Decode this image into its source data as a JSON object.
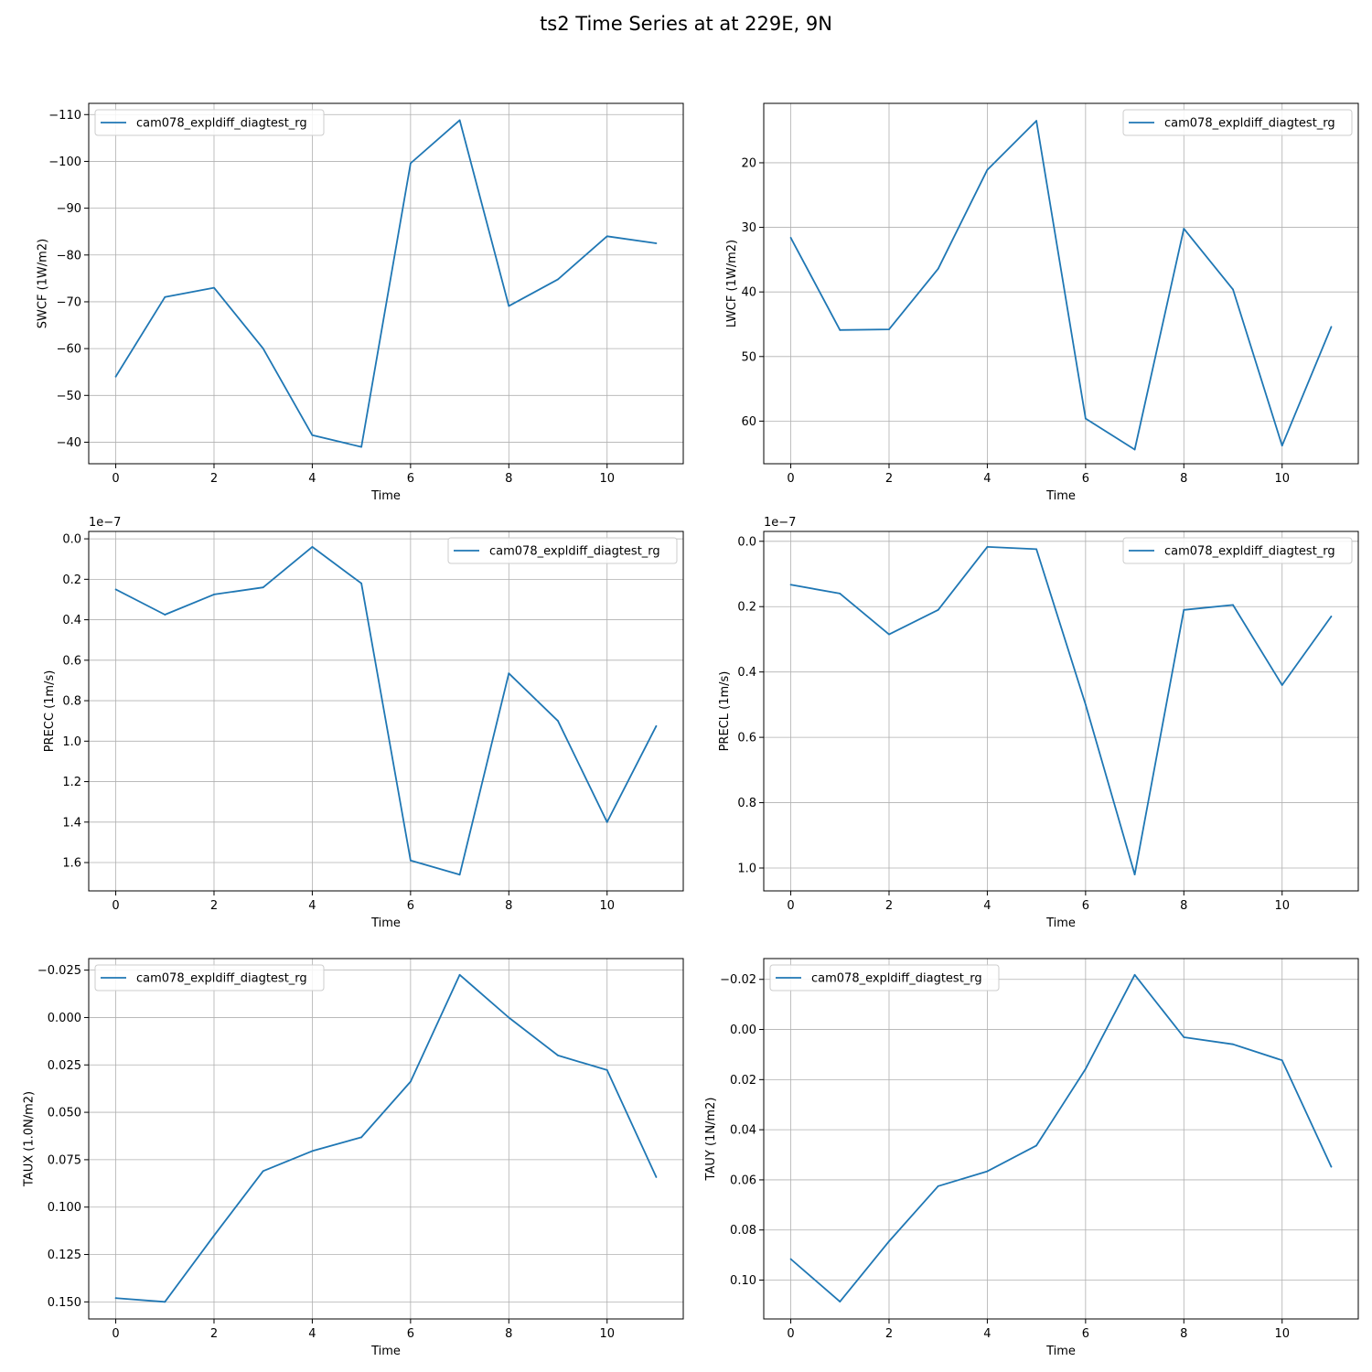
{
  "figure": {
    "title": "ts2 Time Series at at 229E, 9N"
  },
  "colors": {
    "series": "#1f77b4",
    "grid": "#b0b0b0",
    "axes": "#000000",
    "legend_border": "#cccccc"
  },
  "chart_data": [
    {
      "type": "line",
      "xlabel": "Time",
      "ylabel": "SWCF (1W/m2)",
      "offset_label": "",
      "xlim": [
        -0.55,
        11.55
      ],
      "ylim": [
        -35.4,
        -112.4
      ],
      "xticks": [
        0,
        2,
        4,
        6,
        8,
        10
      ],
      "yticks": [
        -40,
        -50,
        -60,
        -70,
        -80,
        -90,
        -100,
        -110
      ],
      "ytick_labels": [
        "−40",
        "−50",
        "−60",
        "−70",
        "−80",
        "−90",
        "−100",
        "−110"
      ],
      "grid": true,
      "legend_position": "upper-left",
      "x": [
        0,
        1,
        2,
        3,
        4,
        5,
        6,
        7,
        8,
        9,
        10,
        11
      ],
      "series": [
        {
          "name": "cam078_expldiff_diagtest_rg",
          "values": [
            -54,
            -71,
            -73,
            -60,
            -41.5,
            -39,
            -99.6,
            -108.8,
            -69.1,
            -74.8,
            -84,
            -82.5
          ]
        }
      ]
    },
    {
      "type": "line",
      "xlabel": "Time",
      "ylabel": "LWCF (1W/m2)",
      "offset_label": "",
      "xlim": [
        -0.55,
        11.55
      ],
      "ylim": [
        66.6,
        10.8
      ],
      "xticks": [
        0,
        2,
        4,
        6,
        8,
        10
      ],
      "yticks": [
        20,
        30,
        40,
        50,
        60
      ],
      "ytick_labels": [
        "20",
        "30",
        "40",
        "50",
        "60"
      ],
      "grid": true,
      "legend_position": "upper-right",
      "x": [
        0,
        1,
        2,
        3,
        4,
        5,
        6,
        7,
        8,
        9,
        10,
        11
      ],
      "series": [
        {
          "name": "cam078_expldiff_diagtest_rg",
          "values": [
            31.6,
            45.9,
            45.8,
            36.4,
            21.1,
            13.5,
            59.6,
            64.4,
            30.2,
            39.6,
            63.8,
            45.4
          ]
        }
      ]
    },
    {
      "type": "line",
      "xlabel": "Time",
      "ylabel": "PRECC (1m/s)",
      "offset_label": "1e−7",
      "xlim": [
        -0.55,
        11.55
      ],
      "ylim": [
        1.74,
        -0.0366
      ],
      "xticks": [
        0,
        2,
        4,
        6,
        8,
        10
      ],
      "yticks": [
        0.0,
        0.2,
        0.4,
        0.6,
        0.8,
        1.0,
        1.2,
        1.4,
        1.6
      ],
      "ytick_labels": [
        "0.0",
        "0.2",
        "0.4",
        "0.6",
        "0.8",
        "1.0",
        "1.2",
        "1.4",
        "1.6"
      ],
      "grid": true,
      "legend_position": "upper-right",
      "x": [
        0,
        1,
        2,
        3,
        4,
        5,
        6,
        7,
        8,
        9,
        10,
        11
      ],
      "series": [
        {
          "name": "cam078_expldiff_diagtest_rg",
          "values": [
            0.25,
            0.375,
            0.275,
            0.24,
            0.04,
            0.22,
            1.59,
            1.66,
            0.665,
            0.9,
            1.4,
            0.925
          ]
        }
      ]
    },
    {
      "type": "line",
      "xlabel": "Time",
      "ylabel": "PRECL (1m/s)",
      "offset_label": "1e−7",
      "xlim": [
        -0.55,
        11.55
      ],
      "ylim": [
        1.07,
        -0.0302
      ],
      "xticks": [
        0,
        2,
        4,
        6,
        8,
        10
      ],
      "yticks": [
        0.0,
        0.2,
        0.4,
        0.6,
        0.8,
        1.0
      ],
      "ytick_labels": [
        "0.0",
        "0.2",
        "0.4",
        "0.6",
        "0.8",
        "1.0"
      ],
      "grid": true,
      "legend_position": "upper-right",
      "x": [
        0,
        1,
        2,
        3,
        4,
        5,
        6,
        7,
        8,
        9,
        10,
        11
      ],
      "series": [
        {
          "name": "cam078_expldiff_diagtest_rg",
          "values": [
            0.133,
            0.16,
            0.285,
            0.21,
            0.017,
            0.024,
            0.5,
            1.02,
            0.21,
            0.195,
            0.44,
            0.23
          ]
        }
      ]
    },
    {
      "type": "line",
      "xlabel": "Time",
      "ylabel": "TAUX (1.0N/m2)",
      "offset_label": "",
      "xlim": [
        -0.55,
        11.55
      ],
      "ylim": [
        0.159,
        -0.0311
      ],
      "xticks": [
        0,
        2,
        4,
        6,
        8,
        10
      ],
      "yticks": [
        -0.025,
        0.0,
        0.025,
        0.05,
        0.075,
        0.1,
        0.125,
        0.15
      ],
      "ytick_labels": [
        "−0.025",
        "0.000",
        "0.025",
        "0.050",
        "0.075",
        "0.100",
        "0.125",
        "0.150"
      ],
      "grid": true,
      "legend_position": "upper-left",
      "x": [
        0,
        1,
        2,
        3,
        4,
        5,
        6,
        7,
        8,
        9,
        10,
        11
      ],
      "series": [
        {
          "name": "cam078_expldiff_diagtest_rg",
          "values": [
            0.148,
            0.15,
            0.115,
            0.081,
            0.0704,
            0.0632,
            0.0338,
            -0.0225,
            0.0,
            0.02,
            0.0277,
            0.0842
          ]
        }
      ]
    },
    {
      "type": "line",
      "xlabel": "Time",
      "ylabel": "TAUY (1N/m2)",
      "offset_label": "",
      "xlim": [
        -0.55,
        11.55
      ],
      "ylim": [
        0.1155,
        -0.0283
      ],
      "xticks": [
        0,
        2,
        4,
        6,
        8,
        10
      ],
      "yticks": [
        -0.02,
        0.0,
        0.02,
        0.04,
        0.06,
        0.08,
        0.1
      ],
      "ytick_labels": [
        "−0.02",
        "0.00",
        "0.02",
        "0.04",
        "0.06",
        "0.08",
        "0.10"
      ],
      "grid": true,
      "legend_position": "upper-left",
      "x": [
        0,
        1,
        2,
        3,
        4,
        5,
        6,
        7,
        8,
        9,
        10,
        11
      ],
      "series": [
        {
          "name": "cam078_expldiff_diagtest_rg",
          "values": [
            0.0916,
            0.1086,
            0.0845,
            0.0625,
            0.0566,
            0.0463,
            0.0157,
            -0.0218,
            0.0031,
            0.0059,
            0.0123,
            0.0548
          ]
        }
      ]
    }
  ]
}
